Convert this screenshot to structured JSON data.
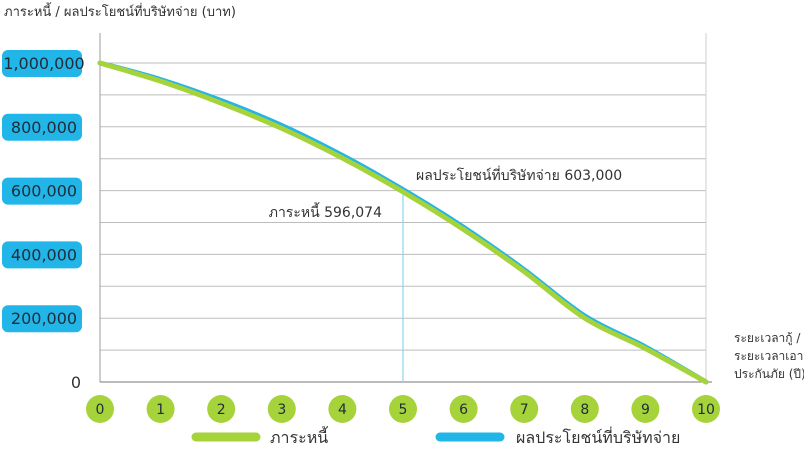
{
  "colors": {
    "debt": "#a6d23a",
    "benefit": "#22b5e8",
    "ytick_bg": "#22b5e8",
    "xtick_bg": "#a6d23a",
    "grid": "#bdbdbd",
    "text": "#333333"
  },
  "chart_data": {
    "type": "line",
    "ylabel": "ภาระหนี้ / ผลประโยชน์ที่บริษัทจ่าย (บาท)",
    "xlabel": [
      "ระยะเวลากู้ /",
      "ระยะเวลาเอา",
      "ประกันภัย (ปี)"
    ],
    "ylim": [
      0,
      1000000
    ],
    "xlim": [
      0,
      10
    ],
    "y_ticks": [
      {
        "value": 0,
        "label": "0"
      },
      {
        "value": 200000,
        "label": "200,000"
      },
      {
        "value": 400000,
        "label": "400,000"
      },
      {
        "value": 600000,
        "label": "600,000"
      },
      {
        "value": 800000,
        "label": "800,000"
      },
      {
        "value": 1000000,
        "label": "1,000,000"
      }
    ],
    "gridlines": [
      100000,
      200000,
      300000,
      400000,
      500000,
      600000,
      700000,
      800000,
      900000,
      1000000
    ],
    "x_ticks": [
      "0",
      "1",
      "2",
      "3",
      "4",
      "5",
      "6",
      "7",
      "8",
      "9",
      "10"
    ],
    "x": [
      0,
      1,
      2,
      3,
      4,
      5,
      6,
      7,
      8,
      9,
      10
    ],
    "series": [
      {
        "name": "ภาระหนี้",
        "key": "debt",
        "values": [
          1000000,
          943000,
          874000,
          795000,
          702000,
          596074,
          478000,
          346000,
          200000,
          105000,
          0
        ]
      },
      {
        "name": "ผลประโยชน์ที่บริษัทจ่าย",
        "key": "benefit",
        "values": [
          1000000,
          948000,
          882000,
          804000,
          710000,
          603000,
          485000,
          352000,
          207000,
          110000,
          0
        ]
      }
    ],
    "annotations": [
      {
        "name": "benefit-annotation",
        "text": "ผลประโยชน์ที่บริษัทจ่าย 603,000",
        "x": 5,
        "value": 603000
      },
      {
        "name": "debt-annotation",
        "text": "ภาระหนี้ 596,074",
        "x": 5,
        "value": 596074
      }
    ],
    "legend": [
      {
        "key": "debt",
        "label": "ภาระหนี้"
      },
      {
        "key": "benefit",
        "label": "ผลประโยชน์ที่บริษัทจ่าย"
      }
    ],
    "legend_position": "bottom"
  }
}
